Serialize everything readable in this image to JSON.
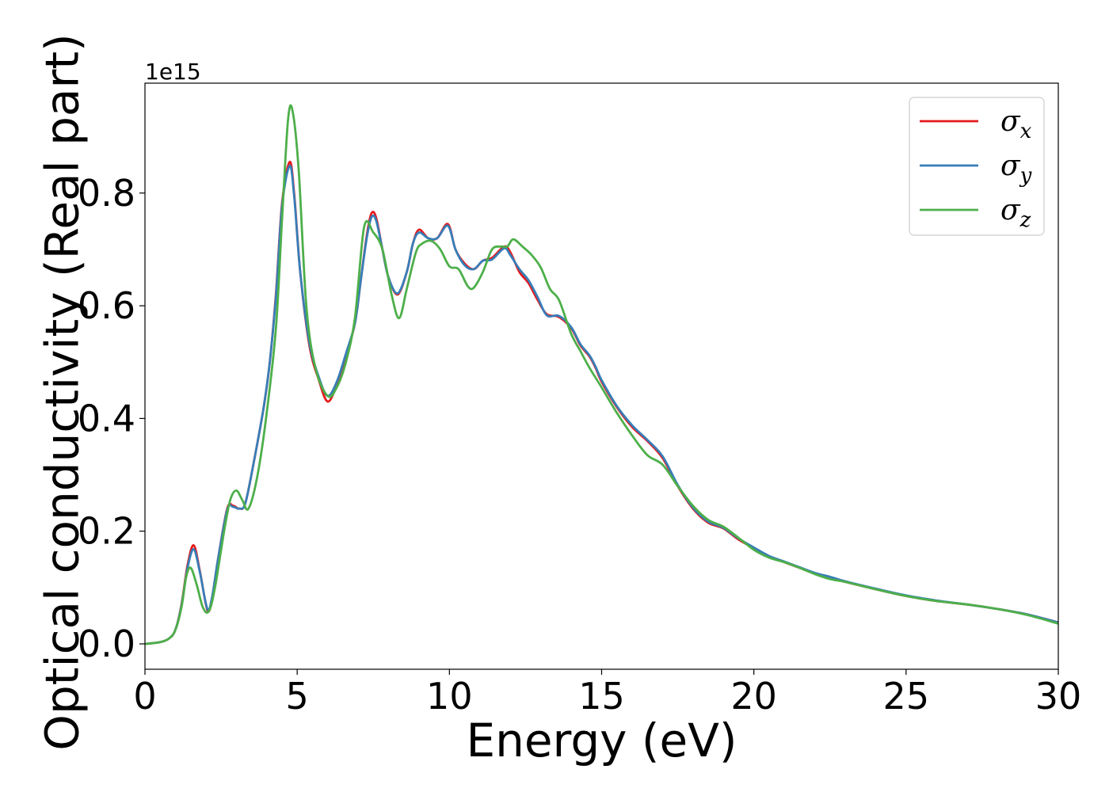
{
  "chart_data": {
    "type": "line",
    "title": "",
    "xlabel": "Energy (eV)",
    "ylabel": "Optical conductivity (Real part)",
    "y_offset_label": "1e15",
    "y_scale": 1000000000000000.0,
    "xlim": [
      0,
      30
    ],
    "ylim": [
      -0.045,
      0.995
    ],
    "x_ticks": [
      0,
      5,
      10,
      15,
      20,
      25,
      30
    ],
    "x_tick_labels": [
      "0",
      "5",
      "10",
      "15",
      "20",
      "25",
      "30"
    ],
    "y_ticks": [
      0.0,
      0.2,
      0.4,
      0.6,
      0.8
    ],
    "y_tick_labels": [
      "0.0",
      "0.2",
      "0.4",
      "0.6",
      "0.8"
    ],
    "grid": false,
    "legend_position": "top-right",
    "series": [
      {
        "name": "σx",
        "legend_base": "σ",
        "legend_sub": "x",
        "color": "#e41a1c",
        "x": [
          0,
          0.5,
          0.8,
          1.0,
          1.2,
          1.4,
          1.6,
          1.8,
          2.05,
          2.2,
          2.4,
          2.7,
          2.9,
          3.1,
          3.3,
          3.6,
          3.9,
          4.1,
          4.3,
          4.5,
          4.75,
          4.9,
          5.1,
          5.4,
          5.7,
          6.0,
          6.3,
          6.6,
          6.9,
          7.1,
          7.3,
          7.45,
          7.6,
          7.8,
          8.0,
          8.3,
          8.6,
          8.8,
          9.0,
          9.3,
          9.6,
          9.95,
          10.2,
          10.5,
          10.8,
          11.1,
          11.4,
          11.8,
          12.0,
          12.3,
          12.6,
          12.9,
          13.2,
          13.6,
          14.0,
          14.3,
          14.6,
          14.8,
          15.0,
          15.5,
          16.0,
          16.5,
          17.0,
          17.5,
          18.0,
          18.5,
          19.0,
          19.5,
          20.0,
          20.5,
          21.0,
          21.5,
          22.0,
          22.5,
          23.0,
          24.0,
          25.0,
          26.0,
          27.0,
          28.0,
          29.0,
          30.0
        ],
        "y": [
          0.0,
          0.003,
          0.01,
          0.025,
          0.07,
          0.14,
          0.175,
          0.13,
          0.06,
          0.08,
          0.15,
          0.24,
          0.245,
          0.24,
          0.25,
          0.33,
          0.42,
          0.5,
          0.62,
          0.78,
          0.855,
          0.8,
          0.66,
          0.53,
          0.47,
          0.43,
          0.46,
          0.51,
          0.57,
          0.65,
          0.73,
          0.765,
          0.755,
          0.7,
          0.65,
          0.62,
          0.66,
          0.71,
          0.735,
          0.72,
          0.72,
          0.745,
          0.7,
          0.675,
          0.665,
          0.68,
          0.685,
          0.705,
          0.695,
          0.66,
          0.64,
          0.61,
          0.585,
          0.58,
          0.56,
          0.53,
          0.51,
          0.49,
          0.465,
          0.42,
          0.385,
          0.36,
          0.33,
          0.28,
          0.24,
          0.215,
          0.205,
          0.185,
          0.17,
          0.155,
          0.145,
          0.135,
          0.125,
          0.118,
          0.11,
          0.097,
          0.085,
          0.076,
          0.07,
          0.062,
          0.052,
          0.038
        ]
      },
      {
        "name": "σy",
        "legend_base": "σ",
        "legend_sub": "y",
        "color": "#377eb8",
        "x": [
          0,
          0.5,
          0.8,
          1.0,
          1.2,
          1.4,
          1.6,
          1.8,
          2.05,
          2.2,
          2.4,
          2.7,
          2.9,
          3.1,
          3.3,
          3.6,
          3.9,
          4.1,
          4.3,
          4.5,
          4.75,
          4.9,
          5.1,
          5.4,
          5.7,
          6.0,
          6.3,
          6.6,
          6.9,
          7.1,
          7.3,
          7.45,
          7.6,
          7.8,
          8.0,
          8.3,
          8.6,
          8.8,
          9.0,
          9.3,
          9.6,
          9.95,
          10.2,
          10.5,
          10.8,
          11.1,
          11.4,
          11.8,
          12.0,
          12.3,
          12.6,
          12.9,
          13.2,
          13.6,
          14.0,
          14.3,
          14.6,
          14.8,
          15.0,
          15.5,
          16.0,
          16.5,
          17.0,
          17.5,
          18.0,
          18.5,
          19.0,
          19.5,
          20.0,
          20.5,
          21.0,
          21.5,
          22.0,
          22.5,
          23.0,
          24.0,
          25.0,
          26.0,
          27.0,
          28.0,
          29.0,
          30.0
        ],
        "y": [
          0.0,
          0.003,
          0.01,
          0.025,
          0.068,
          0.135,
          0.168,
          0.128,
          0.062,
          0.082,
          0.15,
          0.238,
          0.243,
          0.24,
          0.25,
          0.33,
          0.42,
          0.5,
          0.615,
          0.775,
          0.848,
          0.795,
          0.66,
          0.535,
          0.475,
          0.44,
          0.465,
          0.515,
          0.57,
          0.65,
          0.725,
          0.758,
          0.75,
          0.7,
          0.65,
          0.622,
          0.66,
          0.71,
          0.73,
          0.72,
          0.72,
          0.742,
          0.7,
          0.672,
          0.665,
          0.68,
          0.682,
          0.702,
          0.69,
          0.665,
          0.645,
          0.615,
          0.583,
          0.582,
          0.562,
          0.532,
          0.512,
          0.492,
          0.468,
          0.422,
          0.388,
          0.362,
          0.333,
          0.282,
          0.242,
          0.217,
          0.206,
          0.187,
          0.171,
          0.156,
          0.146,
          0.136,
          0.126,
          0.119,
          0.111,
          0.098,
          0.086,
          0.077,
          0.07,
          0.062,
          0.052,
          0.038
        ]
      },
      {
        "name": "σz",
        "legend_base": "σ",
        "legend_sub": "z",
        "color": "#4daf4a",
        "x": [
          0,
          0.5,
          0.8,
          1.0,
          1.2,
          1.35,
          1.5,
          1.7,
          1.9,
          2.1,
          2.3,
          2.6,
          2.8,
          3.0,
          3.2,
          3.4,
          3.7,
          4.0,
          4.3,
          4.5,
          4.7,
          4.85,
          5.05,
          5.3,
          5.6,
          6.0,
          6.3,
          6.6,
          6.9,
          7.2,
          7.5,
          7.8,
          8.1,
          8.35,
          8.6,
          8.9,
          9.1,
          9.4,
          9.7,
          10.0,
          10.3,
          10.6,
          10.8,
          11.1,
          11.4,
          11.7,
          11.9,
          12.1,
          12.4,
          12.7,
          13.0,
          13.3,
          13.6,
          14.0,
          14.3,
          14.6,
          15.0,
          15.5,
          16.0,
          16.5,
          17.0,
          17.5,
          18.0,
          18.5,
          19.0,
          19.5,
          20.0,
          20.5,
          21.0,
          21.5,
          22.0,
          22.5,
          23.0,
          24.0,
          25.0,
          26.0,
          27.0,
          28.0,
          29.0,
          30.0
        ],
        "y": [
          0.0,
          0.003,
          0.01,
          0.025,
          0.065,
          0.118,
          0.135,
          0.105,
          0.065,
          0.058,
          0.1,
          0.2,
          0.255,
          0.272,
          0.255,
          0.24,
          0.3,
          0.41,
          0.56,
          0.75,
          0.93,
          0.945,
          0.84,
          0.6,
          0.49,
          0.44,
          0.455,
          0.5,
          0.58,
          0.74,
          0.73,
          0.7,
          0.62,
          0.578,
          0.63,
          0.695,
          0.71,
          0.715,
          0.7,
          0.67,
          0.665,
          0.635,
          0.632,
          0.66,
          0.7,
          0.705,
          0.705,
          0.718,
          0.705,
          0.69,
          0.668,
          0.63,
          0.61,
          0.55,
          0.52,
          0.49,
          0.455,
          0.41,
          0.37,
          0.335,
          0.318,
          0.28,
          0.245,
          0.22,
          0.208,
          0.188,
          0.167,
          0.153,
          0.145,
          0.135,
          0.124,
          0.115,
          0.11,
          0.097,
          0.085,
          0.076,
          0.07,
          0.062,
          0.051,
          0.036
        ]
      }
    ]
  }
}
